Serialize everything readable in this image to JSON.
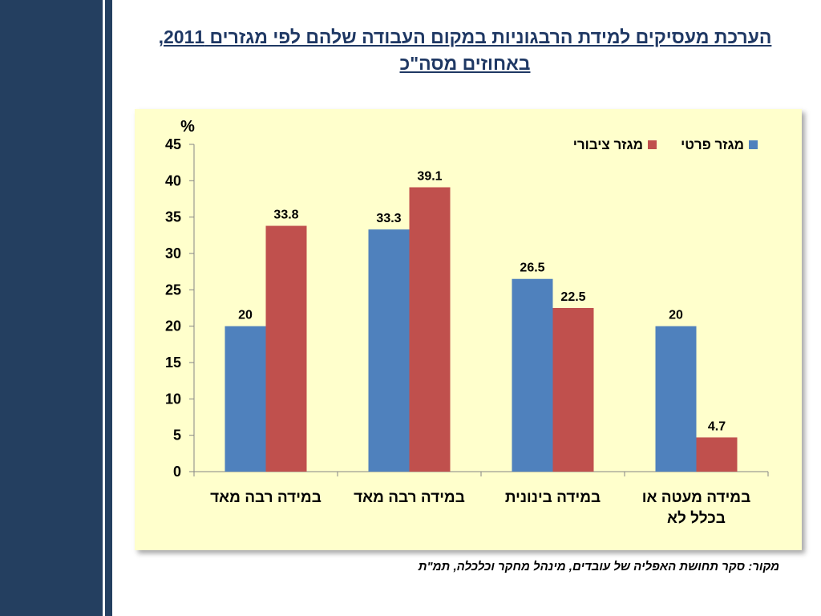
{
  "title": "הערכת מעסיקים למידת הרבגוניות במקום העבודה שלהם לפי מגזרים 2011, באחוזים מסה\"כ",
  "source": "מקור: סקר תחושת האפליה של עובדים, מינהל מחקר וכלכלה, תמ\"ת",
  "colors": {
    "series_private": "#4f81bd",
    "series_public": "#c0504d",
    "panel": "#ffffcc",
    "sidebar": "#243f60"
  },
  "chart_data": {
    "type": "bar",
    "ylabel": "%",
    "ylim": [
      0,
      45
    ],
    "yticks": [
      0,
      5,
      10,
      15,
      20,
      25,
      30,
      35,
      40,
      45
    ],
    "categories": [
      "במידה רבה מאד",
      "במידה רבה מאד",
      "במידה בינונית",
      "במידה מעטה או בכלל לא"
    ],
    "series": [
      {
        "name": "מגזר פרטי",
        "color": "#4f81bd",
        "values": [
          20,
          33.3,
          26.5,
          20
        ]
      },
      {
        "name": "מגזר ציבורי",
        "color": "#c0504d",
        "values": [
          33.8,
          39.1,
          22.5,
          4.7
        ]
      }
    ],
    "legend_position": "top-right",
    "grid": false
  }
}
